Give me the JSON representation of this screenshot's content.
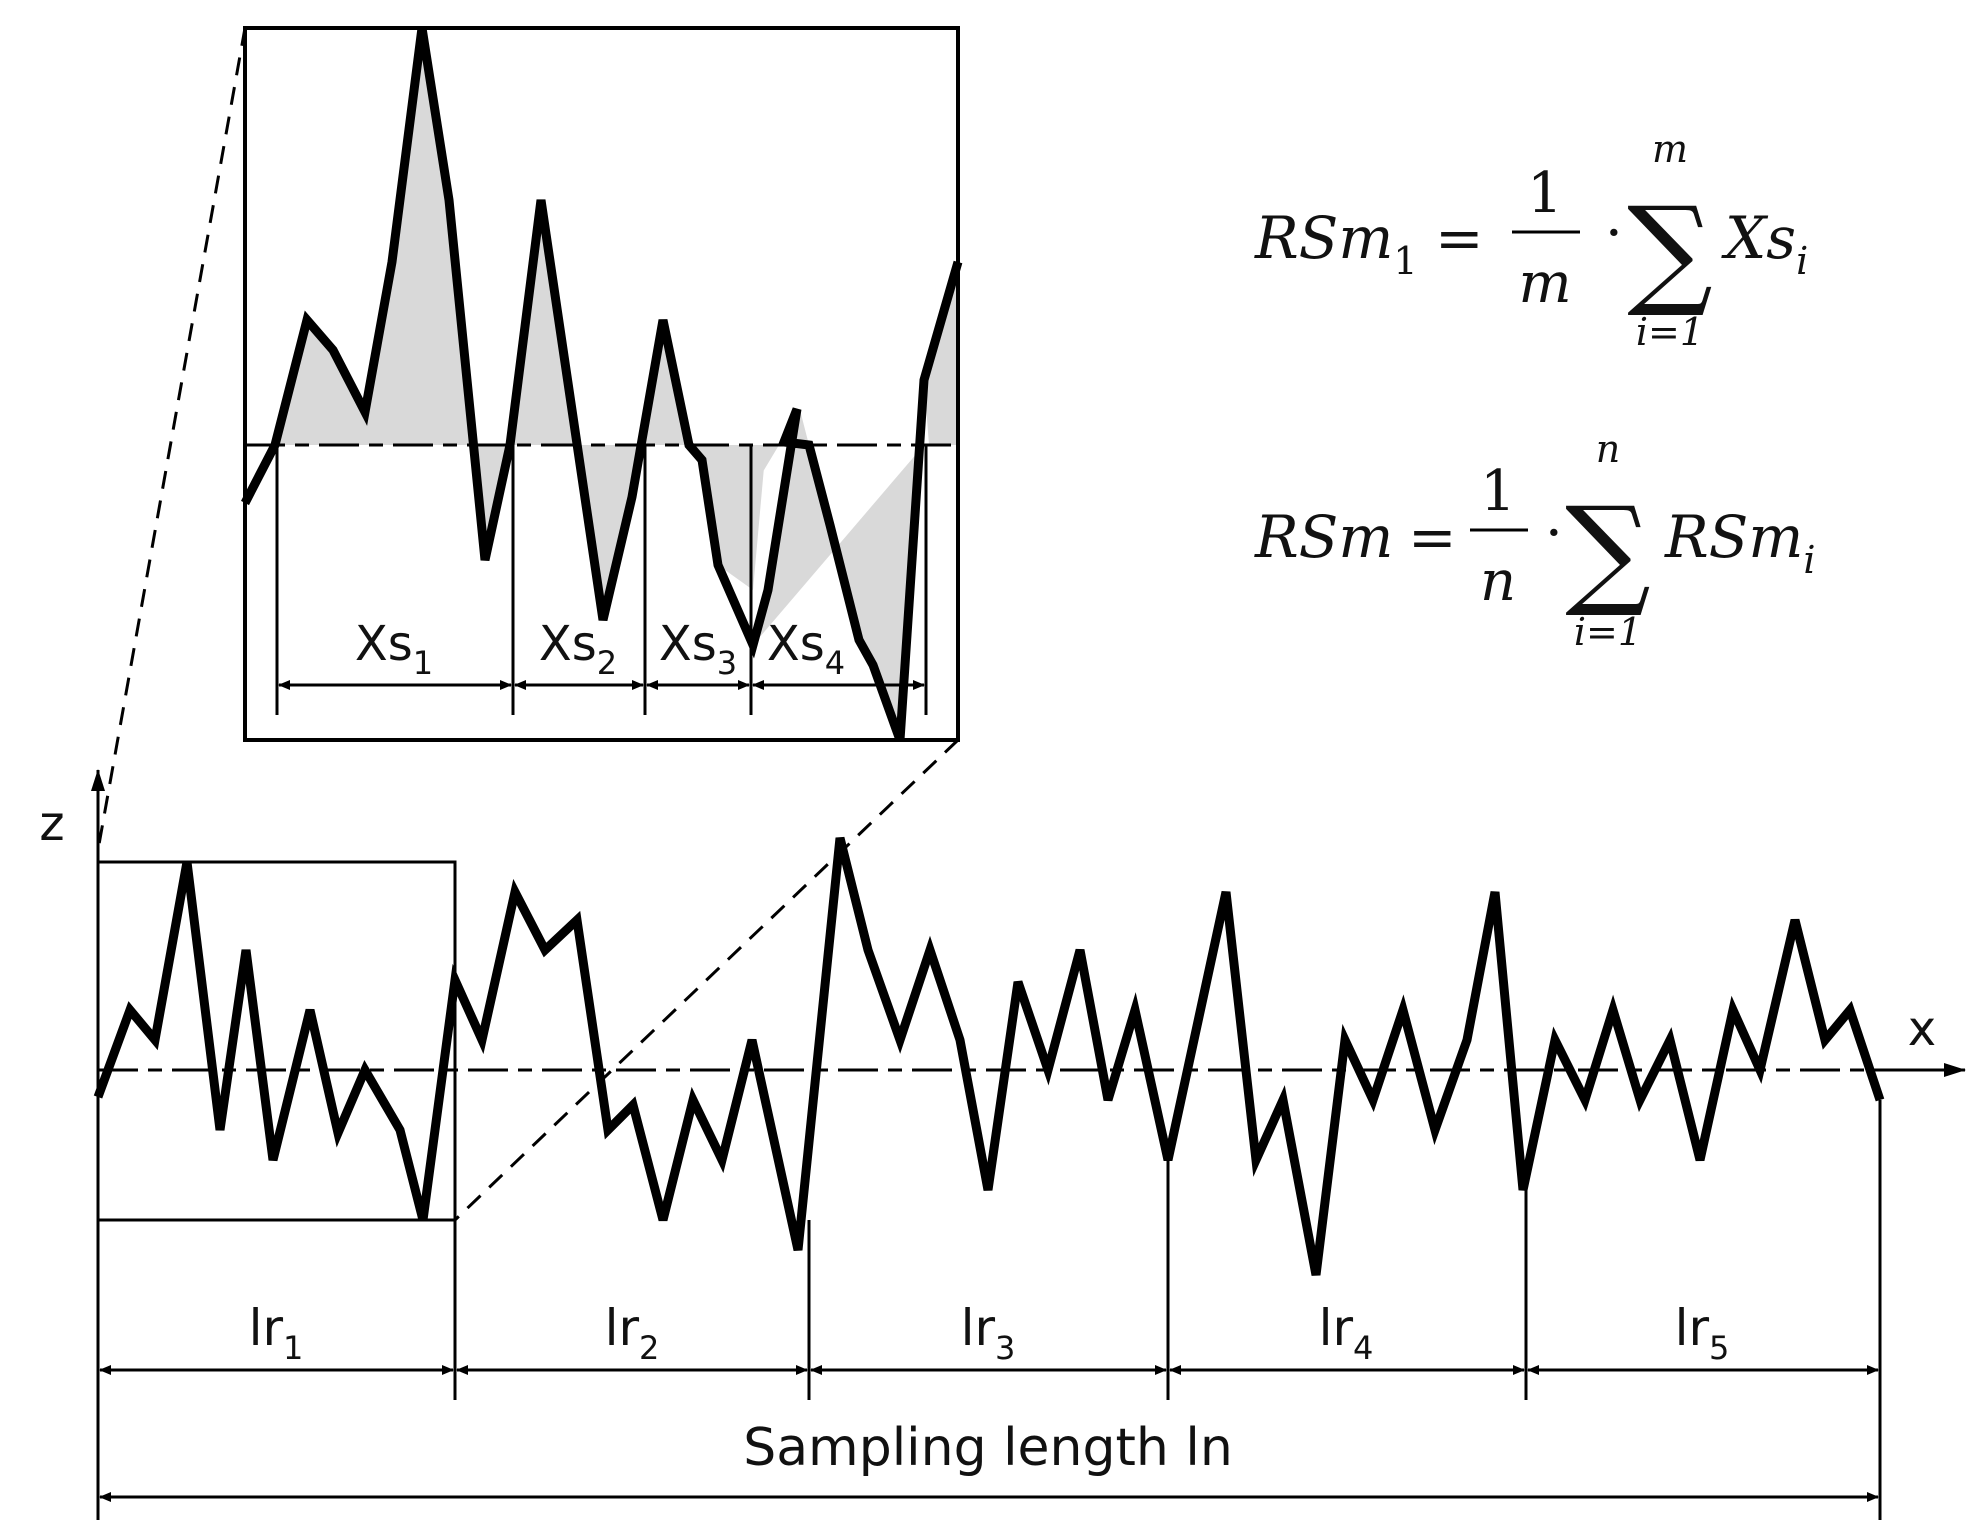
{
  "colors": {
    "ink": "#000000",
    "fill": "#d9d9d9",
    "background": "#ffffff"
  },
  "axes": {
    "z_label": "z",
    "x_label": "x"
  },
  "inset": {
    "segments": [
      {
        "base": "Xs",
        "sub": "1"
      },
      {
        "base": "Xs",
        "sub": "2"
      },
      {
        "base": "Xs",
        "sub": "3"
      },
      {
        "base": "Xs",
        "sub": "4"
      }
    ]
  },
  "sampling": {
    "segments": [
      {
        "base": "lr",
        "sub": "1"
      },
      {
        "base": "lr",
        "sub": "2"
      },
      {
        "base": "lr",
        "sub": "3"
      },
      {
        "base": "lr",
        "sub": "4"
      },
      {
        "base": "lr",
        "sub": "5"
      }
    ],
    "total_label": "Sampling length ln"
  },
  "formulas": {
    "f1": {
      "lhs": "RSm",
      "lhs_sub": "1",
      "eq": "=",
      "num": "1",
      "den": "m",
      "dot": "·",
      "sigma": "∑",
      "upper": "m",
      "lower": "i=1",
      "term": "Xs",
      "term_sub": "i"
    },
    "f2": {
      "lhs": "RSm",
      "eq": "=",
      "num": "1",
      "den": "n",
      "dot": "·",
      "sigma": "∑",
      "upper": "n",
      "lower": "i=1",
      "term": "RSm",
      "term_sub": "i"
    }
  }
}
